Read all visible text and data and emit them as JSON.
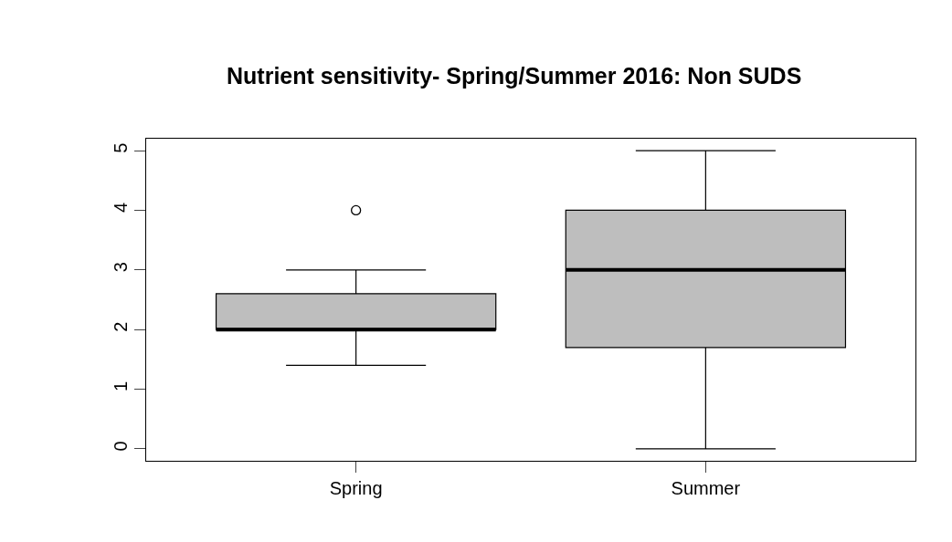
{
  "chart_data": {
    "type": "box",
    "title": "Nutrient sensitivity- Spring/Summer 2016: Non SUDS",
    "categories": [
      "Spring",
      "Summer"
    ],
    "boxes": [
      {
        "low": 1.4,
        "q1": 2.0,
        "median": 2.0,
        "q3": 2.6,
        "high": 3.0,
        "outliers": [
          4
        ]
      },
      {
        "low": 0,
        "q1": 1.7,
        "median": 3.0,
        "q3": 4.0,
        "high": 5.0
      }
    ],
    "color": "#bebebe",
    "ylim": [
      -0.2,
      5.2
    ],
    "yticks": [
      0,
      1,
      2,
      3,
      4,
      5
    ]
  }
}
